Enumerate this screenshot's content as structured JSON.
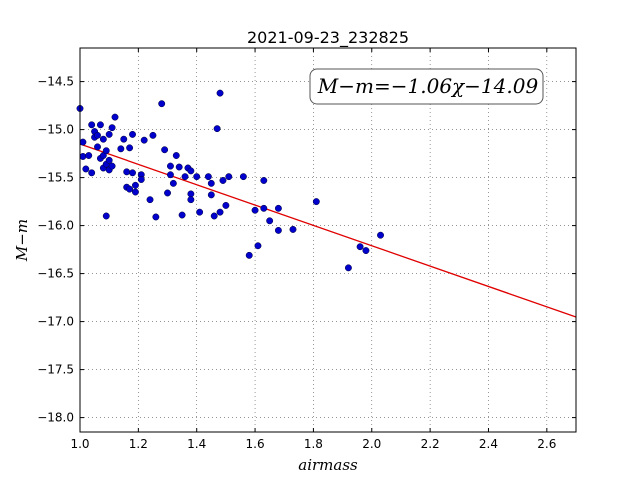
{
  "chart_data": {
    "type": "scatter",
    "title": "2021-09-23_232825",
    "xlabel": "airmass",
    "ylabel": "M−m",
    "xlim": [
      1.0,
      2.7
    ],
    "ylim": [
      -18.15,
      -14.15
    ],
    "x_ticks": [
      1.0,
      1.2,
      1.4,
      1.6,
      1.8,
      2.0,
      2.2,
      2.4,
      2.6
    ],
    "x_tick_labels": [
      "1.0",
      "1.2",
      "1.4",
      "1.6",
      "1.8",
      "2.0",
      "2.2",
      "2.4",
      "2.6"
    ],
    "y_ticks": [
      -14.5,
      -15.0,
      -15.5,
      -16.0,
      -16.5,
      -17.0,
      -17.5,
      -18.0
    ],
    "y_tick_labels": [
      "−14.5",
      "−15.0",
      "−15.5",
      "−16.0",
      "−16.5",
      "−17.0",
      "−17.5",
      "−18.0"
    ],
    "grid": true,
    "annotation": "M−m=−1.06χ−14.09",
    "fit": {
      "slope": -1.06,
      "intercept": -14.09,
      "color": "#e00000"
    },
    "point_color": "#0000cc",
    "points": [
      [
        1.0,
        -14.78
      ],
      [
        1.01,
        -15.13
      ],
      [
        1.01,
        -15.28
      ],
      [
        1.02,
        -15.41
      ],
      [
        1.03,
        -15.27
      ],
      [
        1.04,
        -15.45
      ],
      [
        1.04,
        -14.95
      ],
      [
        1.05,
        -15.02
      ],
      [
        1.05,
        -15.08
      ],
      [
        1.06,
        -15.06
      ],
      [
        1.06,
        -15.18
      ],
      [
        1.07,
        -14.95
      ],
      [
        1.07,
        -15.3
      ],
      [
        1.08,
        -15.1
      ],
      [
        1.08,
        -15.4
      ],
      [
        1.08,
        -15.27
      ],
      [
        1.09,
        -15.22
      ],
      [
        1.09,
        -15.36
      ],
      [
        1.09,
        -15.9
      ],
      [
        1.1,
        -15.32
      ],
      [
        1.1,
        -15.05
      ],
      [
        1.1,
        -15.42
      ],
      [
        1.11,
        -14.98
      ],
      [
        1.11,
        -15.38
      ],
      [
        1.12,
        -14.87
      ],
      [
        1.14,
        -15.2
      ],
      [
        1.15,
        -15.1
      ],
      [
        1.16,
        -15.44
      ],
      [
        1.16,
        -15.6
      ],
      [
        1.17,
        -15.62
      ],
      [
        1.17,
        -15.19
      ],
      [
        1.18,
        -15.05
      ],
      [
        1.18,
        -15.45
      ],
      [
        1.19,
        -15.58
      ],
      [
        1.19,
        -15.65
      ],
      [
        1.21,
        -15.47
      ],
      [
        1.21,
        -15.52
      ],
      [
        1.22,
        -15.11
      ],
      [
        1.24,
        -15.73
      ],
      [
        1.25,
        -15.06
      ],
      [
        1.26,
        -15.91
      ],
      [
        1.28,
        -14.73
      ],
      [
        1.29,
        -15.21
      ],
      [
        1.3,
        -15.66
      ],
      [
        1.31,
        -15.38
      ],
      [
        1.31,
        -15.47
      ],
      [
        1.32,
        -15.56
      ],
      [
        1.33,
        -15.27
      ],
      [
        1.34,
        -15.39
      ],
      [
        1.35,
        -15.89
      ],
      [
        1.36,
        -15.49
      ],
      [
        1.37,
        -15.4
      ],
      [
        1.38,
        -15.43
      ],
      [
        1.38,
        -15.67
      ],
      [
        1.38,
        -15.73
      ],
      [
        1.4,
        -15.49
      ],
      [
        1.41,
        -15.86
      ],
      [
        1.44,
        -15.49
      ],
      [
        1.45,
        -15.68
      ],
      [
        1.45,
        -15.56
      ],
      [
        1.46,
        -15.9
      ],
      [
        1.47,
        -14.99
      ],
      [
        1.48,
        -14.62
      ],
      [
        1.48,
        -15.86
      ],
      [
        1.49,
        -15.53
      ],
      [
        1.5,
        -15.79
      ],
      [
        1.51,
        -15.49
      ],
      [
        1.56,
        -15.49
      ],
      [
        1.58,
        -16.31
      ],
      [
        1.6,
        -15.84
      ],
      [
        1.61,
        -16.21
      ],
      [
        1.63,
        -15.53
      ],
      [
        1.63,
        -15.82
      ],
      [
        1.65,
        -15.95
      ],
      [
        1.68,
        -16.05
      ],
      [
        1.68,
        -15.82
      ],
      [
        1.73,
        -16.04
      ],
      [
        1.81,
        -15.75
      ],
      [
        1.92,
        -16.44
      ],
      [
        1.96,
        -16.22
      ],
      [
        1.98,
        -16.26
      ],
      [
        2.03,
        -16.1
      ]
    ]
  }
}
